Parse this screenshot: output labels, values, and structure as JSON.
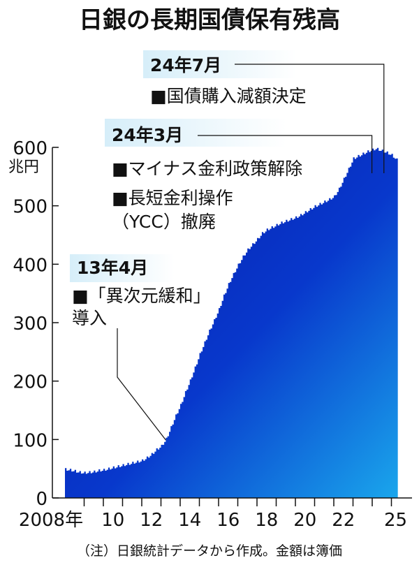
{
  "chart_data": {
    "type": "area",
    "title": "日銀の長期国債保有残高",
    "ylabel": "兆円",
    "y_ticks": [
      "0",
      "100",
      "200",
      "300",
      "400",
      "500",
      "600"
    ],
    "ylim": [
      0,
      600
    ],
    "x_tick_labels": [
      {
        "year": 2008,
        "label": "2008年"
      },
      {
        "year": 2010,
        "label": "10"
      },
      {
        "year": 2012,
        "label": "12"
      },
      {
        "year": 2014,
        "label": "14"
      },
      {
        "year": 2016,
        "label": "16"
      },
      {
        "year": 2018,
        "label": "18"
      },
      {
        "year": 2020,
        "label": "20"
      },
      {
        "year": 2022,
        "label": "22"
      },
      {
        "year": 2025,
        "label": "25"
      }
    ],
    "xlim": [
      "2008-01",
      "2025-12"
    ],
    "note": "（注）日銀統計データから作成。金額は簿価",
    "colors": {
      "fill_dark": "#0a1aa6",
      "fill_mid": "#0838cc",
      "fill_light": "#1aa6ec",
      "callout_bg": "#d6eef9"
    },
    "points": [
      [
        "2008-01",
        48
      ],
      [
        "2008-04",
        47
      ],
      [
        "2008-07",
        45
      ],
      [
        "2008-10",
        43
      ],
      [
        "2009-01",
        42
      ],
      [
        "2009-04",
        43
      ],
      [
        "2009-07",
        44
      ],
      [
        "2009-10",
        46
      ],
      [
        "2010-01",
        47
      ],
      [
        "2010-04",
        49
      ],
      [
        "2010-07",
        51
      ],
      [
        "2010-10",
        53
      ],
      [
        "2011-01",
        55
      ],
      [
        "2011-04",
        57
      ],
      [
        "2011-07",
        59
      ],
      [
        "2011-10",
        61
      ],
      [
        "2012-01",
        63
      ],
      [
        "2012-04",
        68
      ],
      [
        "2012-07",
        74
      ],
      [
        "2012-10",
        82
      ],
      [
        "2013-01",
        88
      ],
      [
        "2013-04",
        100
      ],
      [
        "2013-07",
        120
      ],
      [
        "2013-10",
        140
      ],
      [
        "2014-01",
        158
      ],
      [
        "2014-04",
        180
      ],
      [
        "2014-07",
        200
      ],
      [
        "2014-10",
        222
      ],
      [
        "2015-01",
        245
      ],
      [
        "2015-04",
        265
      ],
      [
        "2015-07",
        285
      ],
      [
        "2015-10",
        303
      ],
      [
        "2016-01",
        322
      ],
      [
        "2016-04",
        345
      ],
      [
        "2016-07",
        365
      ],
      [
        "2016-10",
        382
      ],
      [
        "2017-01",
        398
      ],
      [
        "2017-04",
        412
      ],
      [
        "2017-07",
        424
      ],
      [
        "2017-10",
        433
      ],
      [
        "2018-01",
        442
      ],
      [
        "2018-04",
        452
      ],
      [
        "2018-07",
        458
      ],
      [
        "2018-10",
        462
      ],
      [
        "2019-01",
        466
      ],
      [
        "2019-04",
        470
      ],
      [
        "2019-07",
        473
      ],
      [
        "2019-10",
        476
      ],
      [
        "2020-01",
        479
      ],
      [
        "2020-04",
        483
      ],
      [
        "2020-07",
        488
      ],
      [
        "2020-10",
        493
      ],
      [
        "2021-01",
        498
      ],
      [
        "2021-04",
        502
      ],
      [
        "2021-07",
        506
      ],
      [
        "2021-10",
        510
      ],
      [
        "2022-01",
        515
      ],
      [
        "2022-04",
        528
      ],
      [
        "2022-07",
        545
      ],
      [
        "2022-10",
        562
      ],
      [
        "2023-01",
        580
      ],
      [
        "2023-04",
        584
      ],
      [
        "2023-07",
        588
      ],
      [
        "2023-10",
        592
      ],
      [
        "2024-01",
        595
      ],
      [
        "2024-03",
        597
      ],
      [
        "2024-07",
        593
      ],
      [
        "2024-10",
        590
      ],
      [
        "2025-01",
        586
      ],
      [
        "2025-04",
        578
      ]
    ],
    "annotations": [
      {
        "date": "2013-04",
        "head": "13年4月",
        "lines": [
          "■「異次元緩和」",
          "導入"
        ]
      },
      {
        "date": "2024-03",
        "head": "24年3月",
        "lines": [
          "■マイナス金利政策解除",
          "■長短金利操作",
          "（YCC）撤廃"
        ]
      },
      {
        "date": "2024-07",
        "head": "24年7月",
        "lines": [
          "■国債購入減額決定"
        ]
      }
    ]
  }
}
